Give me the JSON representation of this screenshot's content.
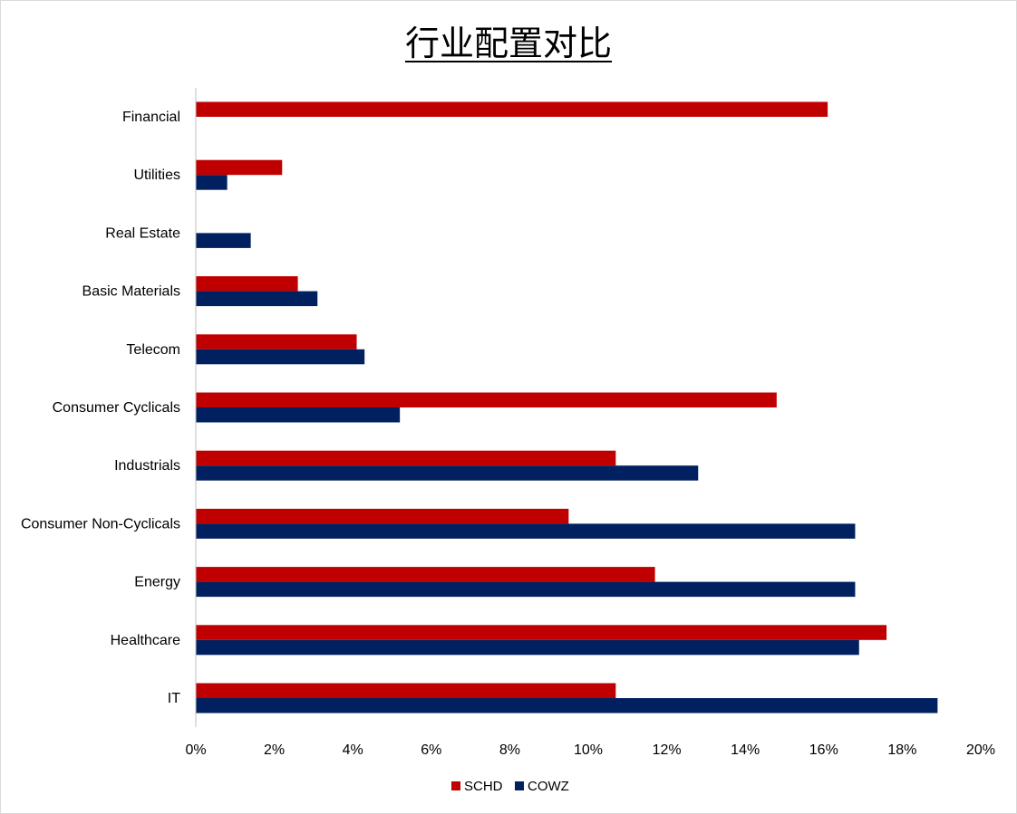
{
  "chart_data": {
    "type": "bar",
    "orientation": "horizontal",
    "title": "行业配置对比",
    "xlabel": "",
    "ylabel": "",
    "xlim": [
      0,
      20
    ],
    "x_tick_labels": [
      "0%",
      "2%",
      "4%",
      "6%",
      "8%",
      "10%",
      "12%",
      "14%",
      "16%",
      "18%",
      "20%"
    ],
    "categories": [
      "Financial",
      "Utilities",
      "Real Estate",
      "Basic Materials",
      "Telecom",
      "Consumer Cyclicals",
      "Industrials",
      "Consumer Non-Cyclicals",
      "Energy",
      "Healthcare",
      "IT"
    ],
    "series": [
      {
        "name": "SCHD",
        "color": "#c00000",
        "values": [
          16.1,
          2.2,
          null,
          2.6,
          4.1,
          14.8,
          10.7,
          9.5,
          11.7,
          17.6,
          10.7
        ]
      },
      {
        "name": "COWZ",
        "color": "#002060",
        "values": [
          null,
          0.8,
          1.4,
          3.1,
          4.3,
          5.2,
          12.8,
          16.8,
          16.8,
          16.9,
          18.9
        ]
      }
    ],
    "grid": false,
    "legend": "bottom"
  }
}
